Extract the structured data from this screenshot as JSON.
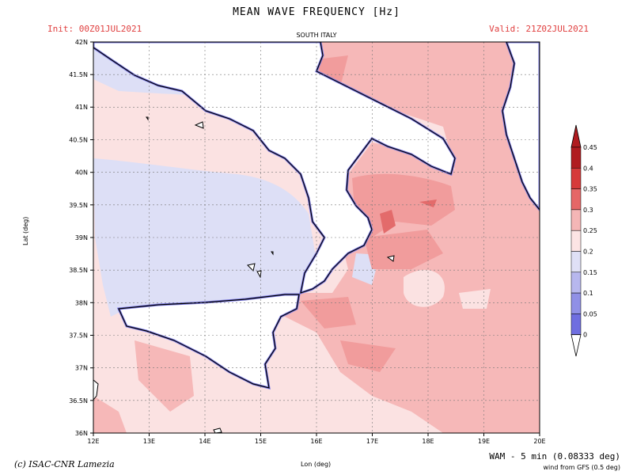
{
  "header": {
    "title": "MEAN WAVE FREQUENCY [Hz]",
    "init": "Init: 00Z01JUL2021",
    "valid": "Valid: 21Z02JUL2021",
    "region": "SOUTH ITALY"
  },
  "footer": {
    "copyright": "(c) ISAC-CNR Lamezia",
    "lon_label": "Lon (deg)",
    "lat_label": "Lat (deg)",
    "model": "WAM - 5 min (0.08333 deg)",
    "wind": "wind from GFS (0.5 deg)"
  },
  "axes": {
    "lon_ticks": [
      "12E",
      "13E",
      "14E",
      "15E",
      "16E",
      "17E",
      "18E",
      "19E",
      "20E"
    ],
    "lat_ticks": [
      "42N",
      "41.5N",
      "41N",
      "40.5N",
      "40N",
      "39.5N",
      "39N",
      "38.5N",
      "38N",
      "37.5N",
      "37N",
      "36.5N",
      "36N"
    ]
  },
  "colorbar": {
    "labels": [
      "0.45",
      "0.4",
      "0.35",
      "0.3",
      "0.25",
      "0.2",
      "0.15",
      "0.1",
      "0.05",
      "0"
    ],
    "colors": [
      "#b01c20",
      "#d63a3a",
      "#e56767",
      "#f4b6b6",
      "#fce4e4",
      "#dfe0f6",
      "#b7b7ee",
      "#9090e6",
      "#6f6ee0"
    ]
  },
  "colors": {
    "sea_low": "#dddff6",
    "sea_mid": "#fbe2e2",
    "sea_high": "#f6b8b8",
    "sea_higher": "#f19c9c",
    "sea_peak": "#e36b6b",
    "coast_edge": "#7a78e4"
  }
}
